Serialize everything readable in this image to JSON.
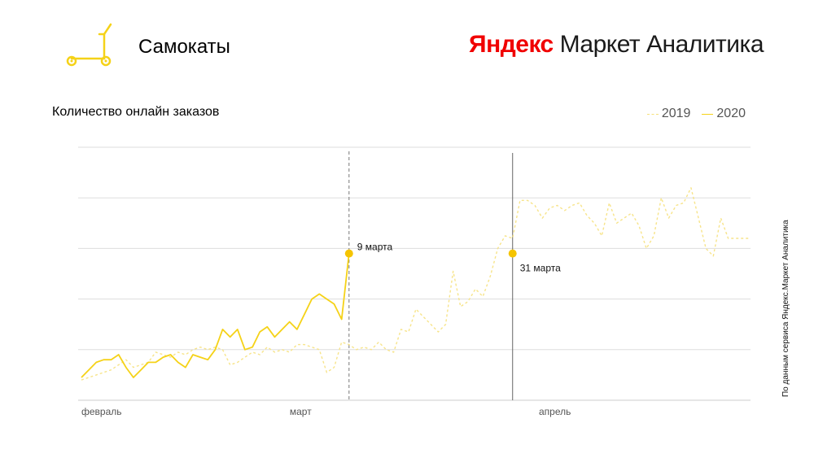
{
  "header": {
    "title": "Самокаты",
    "brand_ya": "Яндекс",
    "brand_rest": " Маркет Аналитика",
    "icon": "scooter-icon"
  },
  "colors": {
    "accent": "#f5d218",
    "series_2019": "#f7e48a",
    "series_2020": "#f5d218",
    "marker": "#f5c400",
    "grid": "#dddddd",
    "brand_red": "#f00000"
  },
  "source_note": "По данным сервиса Яндекс.Маркет Аналитика",
  "chart_data": {
    "type": "line",
    "title": "Количество онлайн заказов",
    "xlabel": "",
    "ylabel": "",
    "x_ticks": [
      {
        "label": "февраль",
        "day": 0
      },
      {
        "label": "март",
        "day": 29
      },
      {
        "label": "апрель",
        "day": 60
      }
    ],
    "x_range": [
      0,
      90
    ],
    "ylim": [
      0,
      5
    ],
    "grid": true,
    "y_gridlines": [
      1,
      2,
      3,
      4,
      5
    ],
    "legend": {
      "position": "top-right",
      "entries": [
        "2019",
        "2020"
      ]
    },
    "series": [
      {
        "name": "2019",
        "style": "dashed",
        "x": [
          0,
          1,
          2,
          3,
          4,
          5,
          6,
          7,
          8,
          9,
          10,
          11,
          12,
          13,
          14,
          15,
          16,
          17,
          18,
          19,
          20,
          21,
          22,
          23,
          24,
          25,
          26,
          27,
          28,
          29,
          30,
          31,
          32,
          33,
          34,
          35,
          36,
          37,
          38,
          39,
          40,
          41,
          42,
          43,
          44,
          45,
          46,
          47,
          48,
          49,
          50,
          51,
          52,
          53,
          54,
          55,
          56,
          57,
          58,
          59,
          60,
          61,
          62,
          63,
          64,
          65,
          66,
          67,
          68,
          69,
          70,
          71,
          72,
          73,
          74,
          75,
          76,
          77,
          78,
          79,
          80,
          81,
          82,
          83,
          84,
          85,
          86,
          87,
          88,
          89,
          90
        ],
        "values": [
          0.4,
          0.45,
          0.5,
          0.55,
          0.6,
          0.7,
          0.8,
          0.65,
          0.7,
          0.75,
          0.95,
          0.9,
          0.85,
          0.95,
          0.9,
          1.0,
          1.05,
          1.0,
          1.05,
          1.0,
          0.7,
          0.75,
          0.85,
          0.95,
          0.9,
          1.05,
          0.95,
          1.0,
          0.95,
          1.1,
          1.1,
          1.05,
          1.0,
          0.55,
          0.65,
          1.15,
          1.1,
          1.0,
          1.05,
          1.0,
          1.15,
          1.0,
          0.95,
          1.4,
          1.35,
          1.8,
          1.65,
          1.5,
          1.35,
          1.5,
          2.55,
          1.85,
          1.95,
          2.2,
          2.05,
          2.45,
          3.0,
          3.25,
          3.2,
          3.95,
          3.95,
          3.85,
          3.6,
          3.8,
          3.85,
          3.75,
          3.85,
          3.9,
          3.65,
          3.5,
          3.25,
          3.9,
          3.5,
          3.6,
          3.7,
          3.45,
          3.0,
          3.25,
          4.0,
          3.6,
          3.85,
          3.9,
          4.2,
          3.6,
          3.0,
          2.85,
          3.6,
          3.2,
          3.2,
          3.2,
          3.2
        ]
      },
      {
        "name": "2020",
        "style": "solid",
        "x": [
          0,
          1,
          2,
          3,
          4,
          5,
          6,
          7,
          8,
          9,
          10,
          11,
          12,
          13,
          14,
          15,
          16,
          17,
          18,
          19,
          20,
          21,
          22,
          23,
          24,
          25,
          26,
          27,
          28,
          29,
          30,
          31,
          32,
          33,
          34,
          35,
          36
        ],
        "values": [
          0.45,
          0.6,
          0.75,
          0.8,
          0.8,
          0.9,
          0.65,
          0.45,
          0.6,
          0.75,
          0.75,
          0.85,
          0.9,
          0.75,
          0.65,
          0.9,
          0.85,
          0.8,
          1.0,
          1.4,
          1.25,
          1.4,
          1.0,
          1.05,
          1.35,
          1.45,
          1.25,
          1.4,
          1.55,
          1.4,
          1.7,
          2.0,
          2.1,
          2.0,
          1.9,
          1.6,
          2.9
        ]
      }
    ],
    "annotations": [
      {
        "label": "9 марта",
        "day": 36,
        "value": 2.9,
        "line": "dashed"
      },
      {
        "label": "31 марта",
        "day": 58,
        "value": 2.9,
        "line": "solid"
      }
    ]
  }
}
